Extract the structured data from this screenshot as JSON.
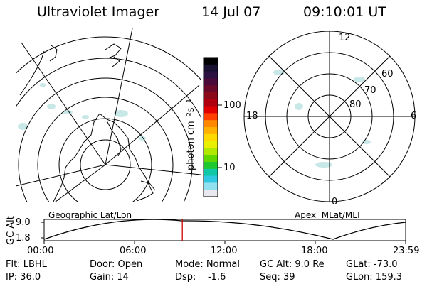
{
  "header": {
    "instrument": "Ultraviolet Imager",
    "date": "14 Jul 07",
    "time": "09:10:01 UT"
  },
  "colorbar": {
    "unit_label": "photon cm⁻²s⁻¹",
    "tick_labels": [
      "100",
      "10"
    ],
    "colors": [
      "#000000",
      "#1a1030",
      "#2c1240",
      "#4a0a3a",
      "#6a0a2a",
      "#8a0a1a",
      "#b00010",
      "#e00000",
      "#ff4000",
      "#ff8800",
      "#ffb000",
      "#ffd800",
      "#e8f000",
      "#b0e800",
      "#60d800",
      "#20c830",
      "#10c8a8",
      "#30c8e0",
      "#90e0f0",
      "#e8e8ee"
    ]
  },
  "left_panel": {
    "label": "Geographic Lat/Lon",
    "land_color": "#000000",
    "aurora_color": "#c8e8e8"
  },
  "right_panel": {
    "label": "Apex  MLat/MLT",
    "hour_labels": {
      "top": "12",
      "bottom": "0",
      "left": "18",
      "right": "6"
    },
    "lat_labels": [
      "60",
      "70",
      "80"
    ]
  },
  "altitude_plot": {
    "ylabel": "GC Alt",
    "y_ticks": [
      "9.0",
      "1.8"
    ],
    "x_ticks": [
      "00:00",
      "06:00",
      "12:00",
      "18:00",
      "23:59"
    ],
    "current_time_marker_color": "#d00000",
    "current_time_hours": 9.17
  },
  "footer": {
    "filter": "Flt: LBHL",
    "ip": "IP: 36.0",
    "door": "Door: Open",
    "gain": "Gain: 14",
    "mode": "Mode: Normal",
    "dsp": "Dsp:    -1.6",
    "gc_alt": "GC Alt: 9.0 Re",
    "seq": "Seq: 39",
    "glat": "GLat: -73.0",
    "glon": "GLon: 159.3"
  }
}
